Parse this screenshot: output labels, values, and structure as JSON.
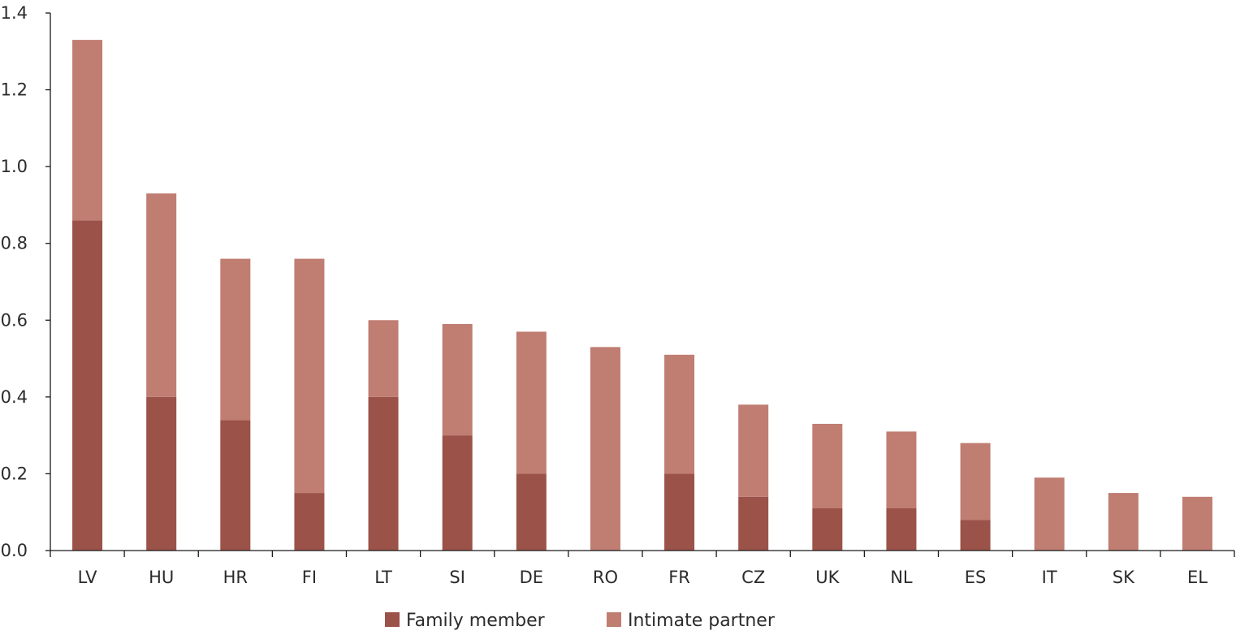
{
  "chart_data": {
    "type": "bar",
    "stacked": true,
    "title": "",
    "xlabel": "",
    "ylabel": "",
    "ylim": [
      0,
      1.4
    ],
    "yticks": [
      "0.0",
      "0.2",
      "0.4",
      "0.6",
      "0.8",
      "1.0",
      "1.2",
      "1.4"
    ],
    "ytick_values": [
      0,
      0.2,
      0.4,
      0.6,
      0.8,
      1.0,
      1.2,
      1.4
    ],
    "grid": false,
    "legend_position": "bottom",
    "categories": [
      "LV",
      "HU",
      "HR",
      "FI",
      "LT",
      "SI",
      "DE",
      "RO",
      "FR",
      "CZ",
      "UK",
      "NL",
      "ES",
      "IT",
      "SK",
      "EL"
    ],
    "series": [
      {
        "name": "Family member",
        "color": "#9b5248",
        "values": [
          0.86,
          0.4,
          0.34,
          0.15,
          0.4,
          0.3,
          0.2,
          0.0,
          0.2,
          0.14,
          0.11,
          0.11,
          0.08,
          0.0,
          0.0,
          0.0
        ]
      },
      {
        "name": "Intimate partner",
        "color": "#c07d72",
        "values": [
          0.47,
          0.53,
          0.42,
          0.61,
          0.2,
          0.29,
          0.37,
          0.53,
          0.31,
          0.24,
          0.22,
          0.2,
          0.2,
          0.19,
          0.15,
          0.14
        ]
      }
    ]
  }
}
